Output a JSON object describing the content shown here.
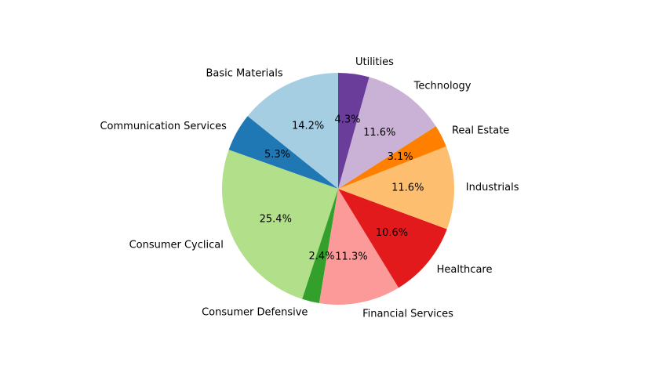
{
  "chart_data": {
    "type": "pie",
    "title": "",
    "start_angle_deg": 90,
    "direction": "counterclockwise",
    "slices": [
      {
        "label": "Basic Materials",
        "value": 14.2,
        "pct_label": "14.2%",
        "color": "#a6cee3"
      },
      {
        "label": "Communication Services",
        "value": 5.3,
        "pct_label": "5.3%",
        "color": "#1f78b4"
      },
      {
        "label": "Consumer Cyclical",
        "value": 25.4,
        "pct_label": "25.4%",
        "color": "#b2df8a"
      },
      {
        "label": "Consumer Defensive",
        "value": 2.4,
        "pct_label": "2.4%",
        "color": "#33a02c"
      },
      {
        "label": "Financial Services",
        "value": 11.3,
        "pct_label": "11.3%",
        "color": "#fb9a99"
      },
      {
        "label": "Healthcare",
        "value": 10.6,
        "pct_label": "10.6%",
        "color": "#e31a1c"
      },
      {
        "label": "Industrials",
        "value": 11.6,
        "pct_label": "11.6%",
        "color": "#fdbf6f"
      },
      {
        "label": "Real Estate",
        "value": 3.1,
        "pct_label": "3.1%",
        "color": "#ff7f00"
      },
      {
        "label": "Technology",
        "value": 11.6,
        "pct_label": "11.6%",
        "color": "#cab2d6"
      },
      {
        "label": "Utilities",
        "value": 4.3,
        "pct_label": "4.3%",
        "color": "#6a3d9a"
      }
    ]
  }
}
